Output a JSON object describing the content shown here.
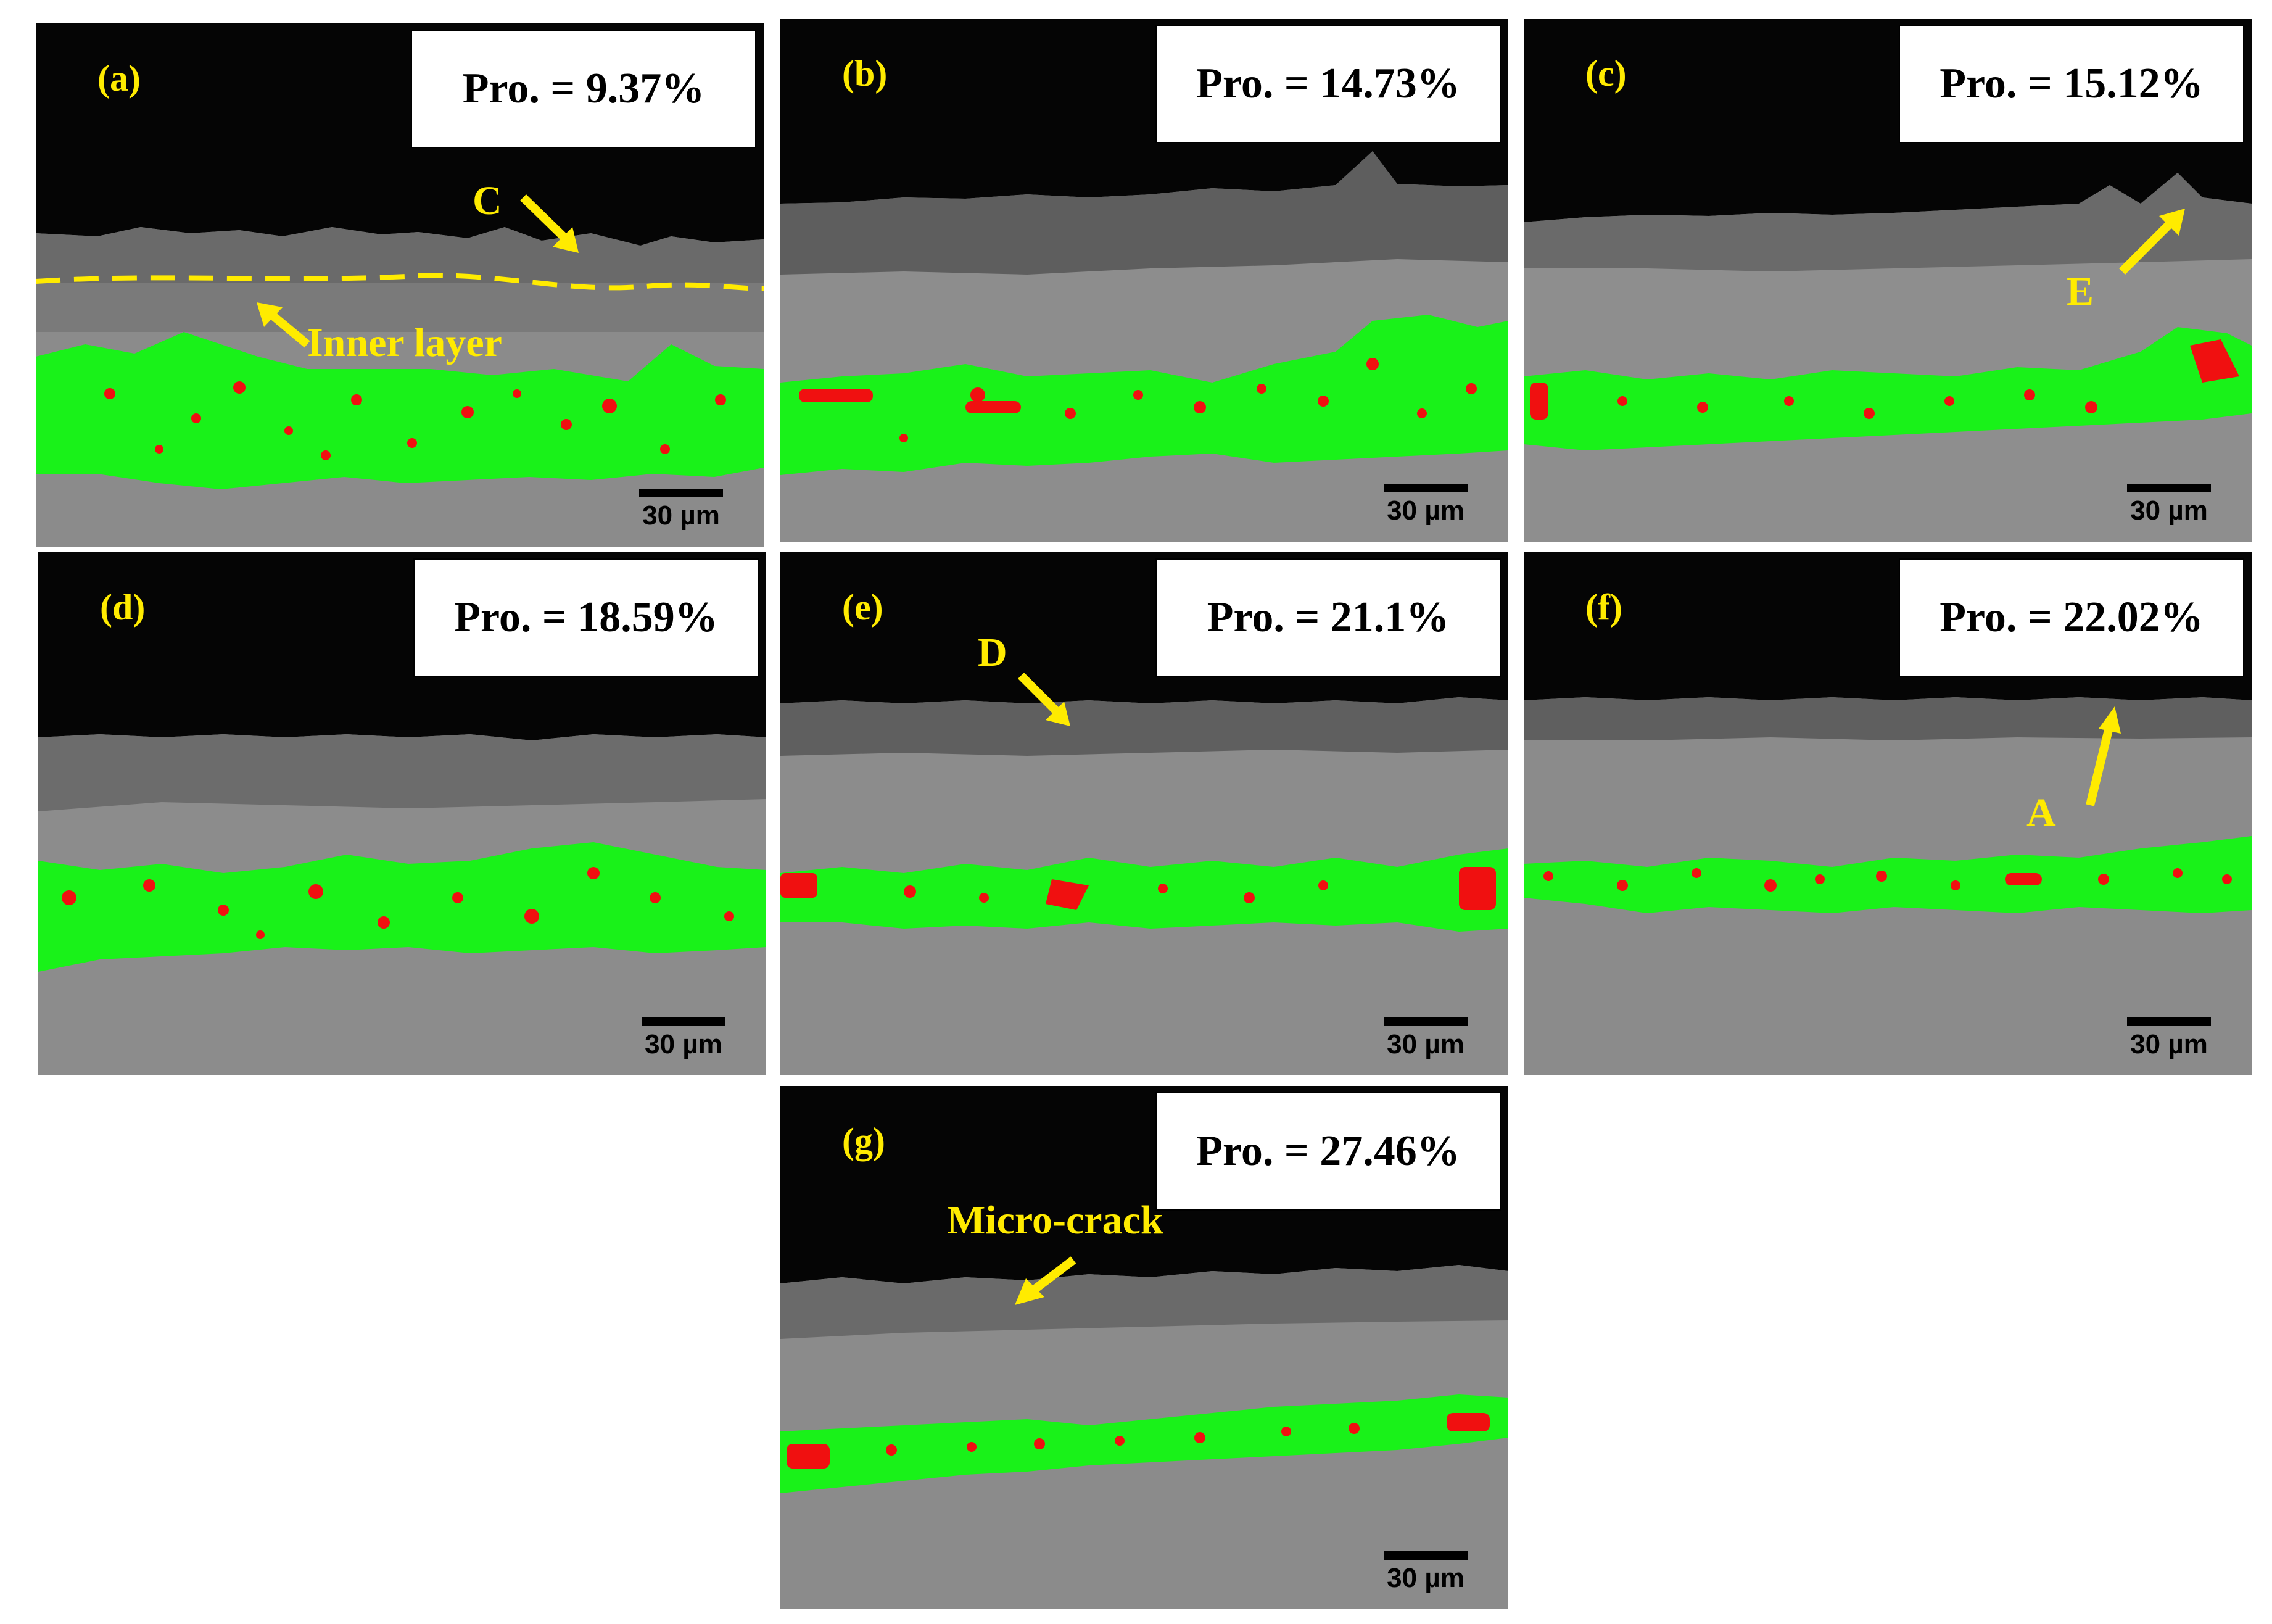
{
  "panels": [
    {
      "id": "a",
      "label": "(a)",
      "pro": "Pro. = 9.37%",
      "scale": "30 µm",
      "annotations": [
        "C",
        "Inner layer"
      ]
    },
    {
      "id": "b",
      "label": "(b)",
      "pro": "Pro. = 14.73%",
      "scale": "30 µm",
      "annotations": []
    },
    {
      "id": "c",
      "label": "(c)",
      "pro": "Pro. = 15.12%",
      "scale": "30 µm",
      "annotations": [
        "E"
      ]
    },
    {
      "id": "d",
      "label": "(d)",
      "pro": "Pro. = 18.59%",
      "scale": "30 µm",
      "annotations": []
    },
    {
      "id": "e",
      "label": "(e)",
      "pro": "Pro. = 21.1%",
      "scale": "30 µm",
      "annotations": [
        "D"
      ]
    },
    {
      "id": "f",
      "label": "(f)",
      "pro": "Pro. = 22.02%",
      "scale": "30 µm",
      "annotations": [
        "A"
      ]
    },
    {
      "id": "g",
      "label": "(g)",
      "pro": "Pro. = 27.46%",
      "scale": "30 µm",
      "annotations": [
        "Micro-crack"
      ]
    }
  ],
  "colors": {
    "label": "#ffeb00",
    "band_green": "#19f219",
    "band_red": "#f01010",
    "background_dark": "#000000",
    "substrate_gray": "#8a8a8a"
  }
}
